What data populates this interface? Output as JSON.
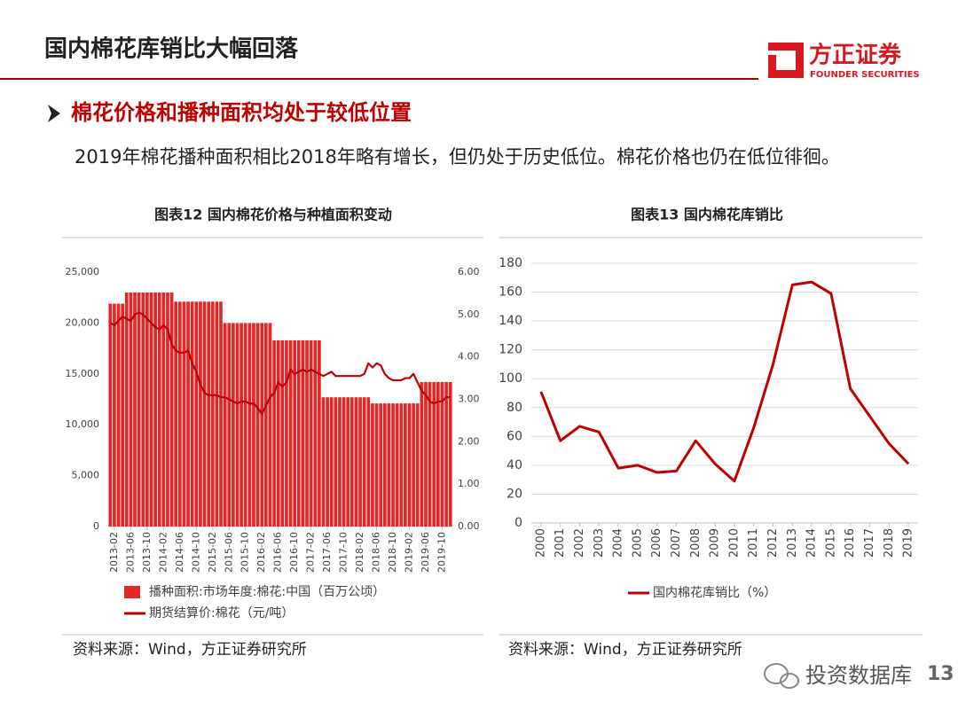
{
  "header": {
    "title": "国内棉花库销比大幅回落",
    "logo_cn": "方正证券",
    "logo_en": "FOUNDER SECURITIES"
  },
  "bullet": "棉花价格和播种面积均处于较低位置",
  "paragraph": "2019年棉花播种面积相比2018年略有增长，但仍处于历史低位。棉花价格也仍在低位徘徊。",
  "chart_data": [
    {
      "type": "combo",
      "title": "图表12 国内棉花价格与种植面积变动",
      "categories": [
        null,
        "2013-02",
        null,
        null,
        null,
        "2013-06",
        null,
        null,
        null,
        "2013-10",
        null,
        null,
        null,
        "2014-02",
        null,
        null,
        null,
        "2014-06",
        null,
        null,
        null,
        "2014-10",
        null,
        null,
        null,
        "2015-02",
        null,
        null,
        null,
        "2015-06",
        null,
        null,
        null,
        "2015-10",
        null,
        null,
        null,
        "2016-02",
        null,
        null,
        null,
        "2016-06",
        null,
        null,
        null,
        "2016-10",
        null,
        null,
        null,
        "2017-02",
        null,
        null,
        null,
        "2017-06",
        null,
        null,
        null,
        "2017-10",
        null,
        null,
        null,
        "2018-02",
        null,
        null,
        null,
        "2018-06",
        null,
        null,
        null,
        "2018-10",
        null,
        null,
        null,
        "2019-02",
        null,
        null,
        null,
        "2019-06",
        null,
        null,
        null,
        "2019-10",
        null,
        null
      ],
      "series": [
        {
          "name": "播种面积:市场年度:棉花:中国（百万公顷）",
          "type": "bar",
          "color": "#e32626",
          "values": [
            21900,
            21900,
            21900,
            21900,
            23000,
            23000,
            23000,
            23000,
            23000,
            23000,
            23000,
            23000,
            23000,
            23000,
            23000,
            23000,
            22100,
            22100,
            22100,
            22100,
            22100,
            22100,
            22100,
            22100,
            22100,
            22100,
            22100,
            22100,
            20000,
            20000,
            20000,
            20000,
            20000,
            20000,
            20000,
            20000,
            20000,
            20000,
            20000,
            20000,
            18300,
            18300,
            18300,
            18300,
            18300,
            18300,
            18300,
            18300,
            18300,
            18300,
            18300,
            18300,
            12700,
            12700,
            12700,
            12700,
            12700,
            12700,
            12700,
            12700,
            12700,
            12700,
            12700,
            12700,
            12100,
            12100,
            12100,
            12100,
            12100,
            12100,
            12100,
            12100,
            12100,
            12100,
            12100,
            12100,
            14200,
            14200,
            14200,
            14200,
            14200,
            14200,
            14200,
            14200
          ]
        },
        {
          "name": "期货结算价:棉花（元/吨）",
          "type": "line",
          "axis": "y2",
          "color": "#c00000",
          "values": [
            4.8,
            4.75,
            4.85,
            4.95,
            4.9,
            4.85,
            5.0,
            5.05,
            5.0,
            4.9,
            4.8,
            4.7,
            4.65,
            4.75,
            4.65,
            4.3,
            4.15,
            4.1,
            4.1,
            4.15,
            3.85,
            3.65,
            3.35,
            3.15,
            3.1,
            3.1,
            3.1,
            3.05,
            3.05,
            3.0,
            2.95,
            2.9,
            2.95,
            2.95,
            2.9,
            2.9,
            2.8,
            2.65,
            2.85,
            3.05,
            3.15,
            3.4,
            3.3,
            3.4,
            3.7,
            3.6,
            3.65,
            3.7,
            3.65,
            3.7,
            3.65,
            3.6,
            3.55,
            3.6,
            3.65,
            3.55,
            3.55,
            3.55,
            3.55,
            3.55,
            3.55,
            3.55,
            3.6,
            3.85,
            3.75,
            3.85,
            3.8,
            3.6,
            3.5,
            3.45,
            3.45,
            3.45,
            3.5,
            3.5,
            3.6,
            3.4,
            3.2,
            3.1,
            2.95,
            2.9,
            2.95,
            2.95,
            3.05,
            3.05
          ]
        }
      ],
      "ylim": [
        0,
        25000
      ],
      "yticks": [
        0,
        {
          "value": 5000,
          "label": "5,000"
        },
        {
          "value": 10000,
          "label": "10,000"
        },
        {
          "value": 15000,
          "label": "15,000"
        },
        {
          "value": 20000,
          "label": "20,000"
        },
        {
          "value": 25000,
          "label": "25,000"
        }
      ],
      "y2lim": [
        0,
        6
      ],
      "y2ticks": [
        {
          "value": 0,
          "label": "0.00"
        },
        {
          "value": 1,
          "label": "1.00"
        },
        {
          "value": 2,
          "label": "2.00"
        },
        {
          "value": 3,
          "label": "3.00"
        },
        {
          "value": 4,
          "label": "4.00"
        },
        {
          "value": 5,
          "label": "5.00"
        },
        {
          "value": 6,
          "label": "6.00"
        }
      ],
      "grid": false,
      "source": "资料来源：Wind，方正证券研究所"
    },
    {
      "type": "line",
      "title": "图表13 国内棉花库销比",
      "categories": [
        "2000",
        "2001",
        "2002",
        "2003",
        "2004",
        "2005",
        "2006",
        "2007",
        "2008",
        "2009",
        "2010",
        "2011",
        "2012",
        "2013",
        "2014",
        "2015",
        "2016",
        "2017",
        "2018",
        "2019"
      ],
      "series": [
        {
          "name": "国内棉花库销比（%）",
          "color": "#c00000",
          "values": [
            91,
            57,
            67,
            63,
            38,
            40,
            35,
            36,
            57,
            41,
            29,
            66,
            110,
            165,
            167,
            159,
            93,
            74,
            55,
            41
          ]
        }
      ],
      "ylim": [
        0,
        180
      ],
      "yticks": [
        0,
        20,
        40,
        60,
        80,
        100,
        120,
        140,
        160,
        180
      ],
      "grid": true,
      "source": "资料来源：Wind，方正证券研究所"
    }
  ],
  "watermark": "投资数据库",
  "page_number": 13
}
